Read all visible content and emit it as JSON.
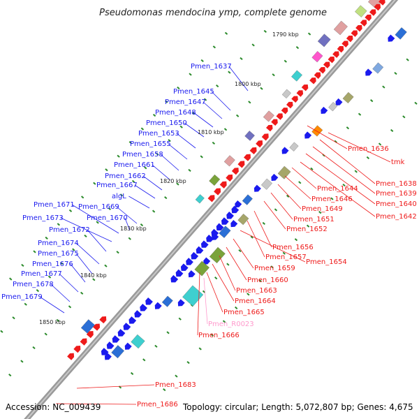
{
  "title": "Pseudomonas mendocina ymp, complete genome",
  "footer": {
    "accession": "Accession: NC_009439",
    "info": "Topology: circular; Length: 5,072,807 bp; Genes: 4,675"
  },
  "colors": {
    "forward_gene": "#1a1aee",
    "reverse_gene": "#ee1a1a",
    "rna_label": "#ff99cc",
    "backbone": "#888888",
    "dot": "#2a8a2a"
  },
  "kbp_ticks": [
    {
      "label": "1790 kbp"
    },
    {
      "label": "1800 kbp"
    },
    {
      "label": "1810 kbp"
    },
    {
      "label": "1820 kbp"
    },
    {
      "label": "1830 kbp"
    },
    {
      "label": "1840 kbp"
    },
    {
      "label": "1850 kbp"
    }
  ],
  "left_labels": [
    {
      "text": "Pmen_1637"
    },
    {
      "text": "Pmen_1645"
    },
    {
      "text": "Pmen_1647"
    },
    {
      "text": "Pmen_1648"
    },
    {
      "text": "Pmen_1650"
    },
    {
      "text": "Pmen_1653"
    },
    {
      "text": "Pmen_1655"
    },
    {
      "text": "Pmen_1658"
    },
    {
      "text": "Pmen_1661"
    },
    {
      "text": "Pmen_1662"
    },
    {
      "text": "Pmen_1667"
    },
    {
      "text": "algL"
    },
    {
      "text": "Pmen_1669"
    },
    {
      "text": "Pmen_1671"
    },
    {
      "text": "Pmen_1670"
    },
    {
      "text": "Pmen_1673"
    },
    {
      "text": "Pmen_1672"
    },
    {
      "text": "Pmen_1674"
    },
    {
      "text": "Pmen_1675"
    },
    {
      "text": "Pmen_1676"
    },
    {
      "text": "Pmen_1677"
    },
    {
      "text": "Pmen_1678"
    },
    {
      "text": "Pmen_1679"
    }
  ],
  "right_labels": [
    {
      "text": "Pmen_1636"
    },
    {
      "text": "tmk"
    },
    {
      "text": "Pmen_1638"
    },
    {
      "text": "Pmen_1639"
    },
    {
      "text": "Pmen_1640"
    },
    {
      "text": "Pmen_1642"
    },
    {
      "text": "Pmen_1644"
    },
    {
      "text": "Pmen_1646"
    },
    {
      "text": "Pmen_1649"
    },
    {
      "text": "Pmen_1651"
    },
    {
      "text": "Pmen_1652"
    },
    {
      "text": "Pmen_1656"
    },
    {
      "text": "Pmen_1657"
    },
    {
      "text": "Pmen_1654"
    },
    {
      "text": "Pmen_1659"
    },
    {
      "text": "Pmen_1660"
    },
    {
      "text": "Pmen_1663"
    },
    {
      "text": "Pmen_1664"
    },
    {
      "text": "Pmen_1665"
    },
    {
      "text": "Pmen_R0023",
      "rna": true
    },
    {
      "text": "Pmen_1666"
    },
    {
      "text": "Pmen_1683"
    },
    {
      "text": "Pmen_1686"
    }
  ]
}
